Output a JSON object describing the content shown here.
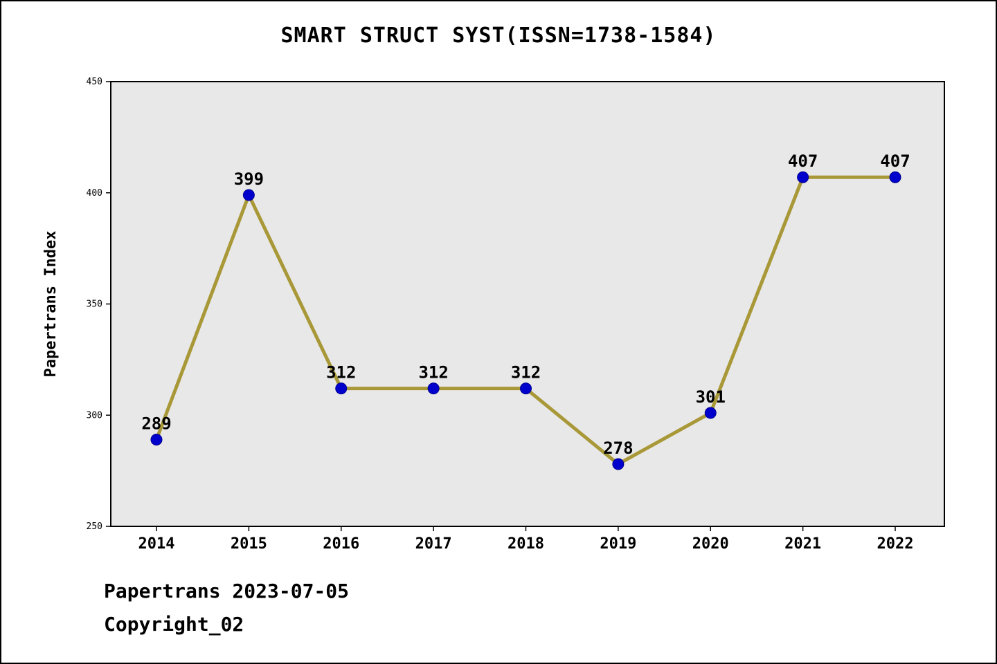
{
  "page": {
    "title": "SMART STRUCT SYST(ISSN=1738-1584)",
    "footer_line1": "Papertrans 2023-07-05",
    "footer_line2": "Copyright_02"
  },
  "chart_data": {
    "type": "line",
    "title": "SMART STRUCT SYST(ISSN=1738-1584)",
    "categories": [
      "2014",
      "2015",
      "2016",
      "2017",
      "2018",
      "2019",
      "2020",
      "2021",
      "2022"
    ],
    "values": [
      289,
      399,
      312,
      312,
      312,
      278,
      301,
      407,
      407
    ],
    "xlabel": "",
    "ylabel": "Papertrans Index",
    "ylim": [
      250,
      450
    ],
    "yticks": [
      250,
      300,
      350,
      400,
      450
    ],
    "grid": false,
    "legend": false,
    "point_labels": [
      "289",
      "399",
      "312",
      "312",
      "312",
      "278",
      "301",
      "407",
      "407"
    ],
    "colors": {
      "line": "#a89838",
      "marker": "#0000cd",
      "marker_edge": "#000090",
      "plot_background": "#e8e8e8",
      "axis": "#000000",
      "text": "#000000"
    }
  }
}
